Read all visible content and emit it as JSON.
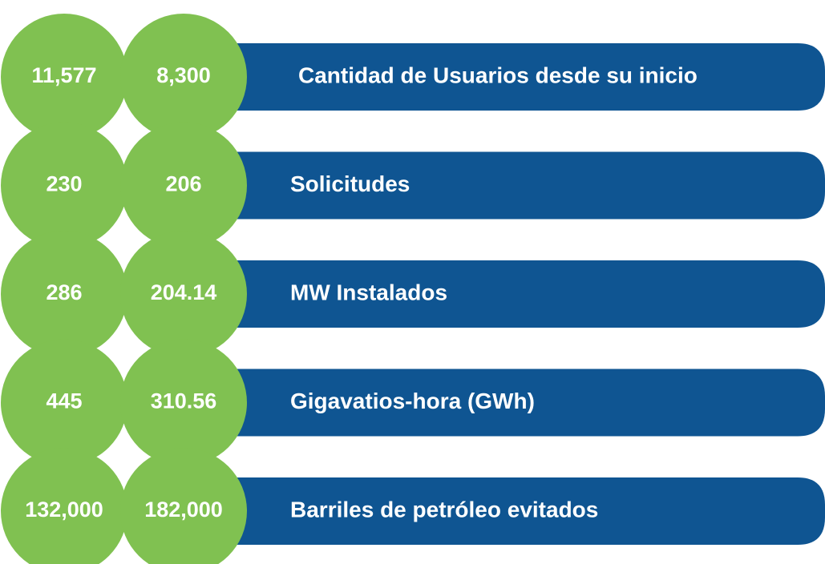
{
  "rows": [
    {
      "first": "11,577",
      "second": "8,300",
      "label": "Cantidad de Usuarios desde su inicio"
    },
    {
      "first": "230",
      "second": "206",
      "label": "Solicitudes"
    },
    {
      "first": "286",
      "second": "204.14",
      "label": "MW Instalados"
    },
    {
      "first": "445",
      "second": "310.56",
      "label": "Gigavatios-hora (GWh)"
    },
    {
      "first": "132,000",
      "second": "182,000",
      "label": "Barriles de petróleo evitados"
    }
  ]
}
